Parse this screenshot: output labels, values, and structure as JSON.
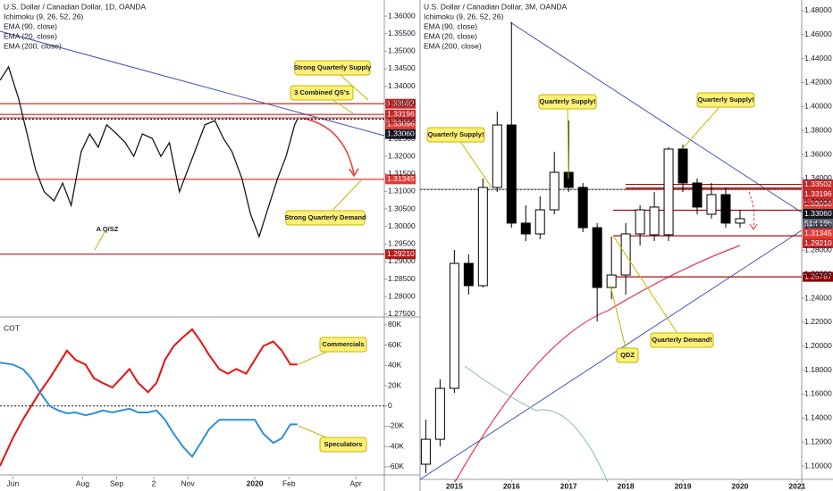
{
  "chart_data": [
    {
      "type": "line",
      "title": "U.S. Dollar / Canadian Dollar, 1D, OANDA",
      "indicators": [
        "Ichimoku (9, 26, 52, 26)",
        "EMA (90, close)",
        "EMA (20, close)",
        "EMA (200, close)"
      ],
      "x": [
        0,
        6,
        13,
        19,
        25,
        31,
        38,
        44,
        50,
        57,
        63,
        69,
        75,
        82,
        88,
        94,
        100,
        107,
        113,
        119,
        126,
        132,
        138,
        144,
        151,
        157,
        163,
        170,
        176,
        182,
        188,
        195,
        201,
        207,
        209
      ],
      "values": [
        1.3417,
        1.3455,
        1.3366,
        1.3264,
        1.3162,
        1.3099,
        1.3073,
        1.3124,
        1.306,
        1.3213,
        1.3264,
        1.3226,
        1.329,
        1.3264,
        1.3239,
        1.32,
        1.3264,
        1.3251,
        1.32,
        1.3239,
        1.3099,
        1.3162,
        1.3226,
        1.329,
        1.3302,
        1.3251,
        1.3213,
        1.3137,
        1.3035,
        1.2971,
        1.3048,
        1.3137,
        1.32,
        1.329,
        1.3307
      ],
      "color": "#131722",
      "xlim": [
        0,
        270
      ],
      "xticks": [
        {
          "value": 9,
          "label": "Jun"
        },
        {
          "value": 58,
          "label": "Aug"
        },
        {
          "value": 82,
          "label": "Sep"
        },
        {
          "value": 108,
          "label": "2"
        },
        {
          "value": 132,
          "label": "Nov"
        },
        {
          "value": 179,
          "label": "2020"
        },
        {
          "value": 203,
          "label": "Feb"
        },
        {
          "value": 250,
          "label": "Apr"
        }
      ],
      "ylim": [
        1.2742,
        1.3646
      ],
      "yticks": [
        {
          "value": 1.36,
          "label": "1.36000"
        },
        {
          "value": 1.355,
          "label": "1.35500"
        },
        {
          "value": 1.35,
          "label": "1.35000"
        },
        {
          "value": 1.345,
          "label": "1.34500"
        },
        {
          "value": 1.34,
          "label": "1.34000"
        },
        {
          "value": 1.335,
          "label": "1.33500"
        },
        {
          "value": 1.33,
          "label": "1.33000"
        },
        {
          "value": 1.325,
          "label": "1.32500"
        },
        {
          "value": 1.32,
          "label": "1.32000"
        },
        {
          "value": 1.315,
          "label": "1.31500"
        },
        {
          "value": 1.31,
          "label": "1.31000"
        },
        {
          "value": 1.305,
          "label": "1.30500"
        },
        {
          "value": 1.3,
          "label": "1.30000"
        },
        {
          "value": 1.295,
          "label": "1.29500"
        },
        {
          "value": 1.29,
          "label": "1.29000"
        },
        {
          "value": 1.285,
          "label": "1.28500"
        },
        {
          "value": 1.28,
          "label": "1.28000"
        },
        {
          "value": 1.275,
          "label": "1.27500"
        }
      ],
      "levels": [
        {
          "value": 1.33502,
          "label": "1.33502",
          "color": "#c62828"
        },
        {
          "value": 1.33196,
          "label": "1.33196",
          "color": "#c62828"
        },
        {
          "value": 1.33096,
          "label": "1.33096",
          "color": "#e53935"
        },
        {
          "value": 1.3306,
          "label": "1.33060",
          "color": "#131722"
        },
        {
          "value": 1.31345,
          "label": "1.31345",
          "color": "#e53935"
        },
        {
          "value": 1.2921,
          "label": "1.29210",
          "color": "#b71c1c"
        }
      ],
      "annotations": [
        "Strong Quarterly Supply",
        "3 Combined QS's",
        "Strong Quarterly Demand",
        "A Q/SZ"
      ]
    },
    {
      "type": "line",
      "title": "COT",
      "x": [
        0,
        9,
        16,
        22,
        28,
        35,
        41,
        47,
        53,
        60,
        66,
        72,
        79,
        85,
        91,
        97,
        104,
        110,
        116,
        122,
        129,
        135,
        141,
        147,
        154,
        160,
        166,
        173,
        179,
        185,
        192,
        198,
        204,
        209
      ],
      "series": [
        {
          "name": "Commercials",
          "color": "#e81010",
          "values": [
            -59100,
            -31800,
            -13600,
            0,
            13600,
            27300,
            40900,
            54500,
            45500,
            40900,
            27300,
            22700,
            18200,
            27300,
            36400,
            22700,
            13600,
            22700,
            45500,
            59100,
            68200,
            75500,
            63600,
            50000,
            36400,
            31800,
            36400,
            31800,
            45500,
            59100,
            63600,
            54500,
            40900,
            40900
          ]
        },
        {
          "name": "Speculators",
          "color": "#2f8fd8",
          "values": [
            42700,
            40900,
            36400,
            27300,
            13600,
            0,
            -4500,
            -7300,
            -6400,
            -9100,
            -7300,
            -4500,
            -6400,
            -4500,
            -2700,
            -6400,
            -6400,
            -4500,
            -13600,
            -27300,
            -40900,
            -50000,
            -36400,
            -22700,
            -13600,
            -13600,
            -13600,
            -13600,
            -13600,
            -27300,
            -36400,
            -31800,
            -18200,
            -18200
          ]
        }
      ],
      "xlim": [
        0,
        270
      ],
      "ylim": [
        -68000,
        86000
      ],
      "yticks": [
        {
          "value": 80000,
          "label": "80K"
        },
        {
          "value": 60000,
          "label": "60K"
        },
        {
          "value": 40000,
          "label": "40K"
        },
        {
          "value": 20000,
          "label": "20K"
        },
        0,
        {
          "value": -20000,
          "label": "-20K"
        },
        {
          "value": -40000,
          "label": "-40K"
        },
        {
          "value": -60000,
          "label": "-60K"
        }
      ],
      "zero_line": true
    },
    {
      "type": "candlestick",
      "title": "U.S. Dollar / Canadian Dollar, 3M, OANDA",
      "indicators": [
        "Ichimoku (9, 26, 52, 26)",
        "EMA (90, close)",
        "EMA (20, close)",
        "EMA (200, close)"
      ],
      "x": [
        2014.5,
        2014.75,
        2015,
        2015.25,
        2015.5,
        2015.75,
        2016,
        2016.25,
        2016.5,
        2016.75,
        2017,
        2017.25,
        2017.5,
        2017.75,
        2018,
        2018.25,
        2018.5,
        2018.75,
        2019,
        2019.25,
        2019.5,
        2019.75,
        2020
      ],
      "open": [
        1.1015,
        1.1223,
        1.1648,
        1.2691,
        1.2505,
        1.3325,
        1.3846,
        1.3027,
        1.2937,
        1.3138,
        1.3451,
        1.3325,
        1.2989,
        1.249,
        1.2594,
        1.2937,
        1.293,
        1.293,
        1.3645,
        1.3362,
        1.3101,
        1.3265,
        1.3027
      ],
      "high": [
        1.1387,
        1.1723,
        1.2803,
        1.2766,
        1.3399,
        1.3958,
        1.4703,
        1.3176,
        1.325,
        1.3623,
        1.3883,
        1.3362,
        1.3027,
        1.2915,
        1.3027,
        1.3176,
        1.3287,
        1.366,
        1.3682,
        1.3399,
        1.3362,
        1.3325,
        1.3138
      ],
      "low": [
        1.094,
        1.1164,
        1.1611,
        1.243,
        1.249,
        1.3287,
        1.2989,
        1.2877,
        1.2892,
        1.3101,
        1.3287,
        1.2952,
        1.2207,
        1.2393,
        1.243,
        1.284,
        1.2877,
        1.2877,
        1.3287,
        1.3101,
        1.3064,
        1.2989,
        1.2989
      ],
      "close": [
        1.1223,
        1.1648,
        1.2691,
        1.2505,
        1.3325,
        1.3846,
        1.3027,
        1.2937,
        1.3138,
        1.3451,
        1.3325,
        1.2989,
        1.249,
        1.2594,
        1.2937,
        1.3138,
        1.3161,
        1.3645,
        1.3362,
        1.3161,
        1.3265,
        1.3027,
        1.3064
      ],
      "up_color": "#ffffff",
      "down_color": "#000000",
      "xlim": [
        2014.4,
        2021.08
      ],
      "xticks": [
        2015,
        2016,
        2017,
        2018,
        2019,
        2020,
        2021
      ],
      "ylim": [
        1.0866,
        1.4889
      ],
      "yticks": [
        {
          "value": 1.48,
          "label": "1.48000"
        },
        {
          "value": 1.46,
          "label": "1.46000"
        },
        {
          "value": 1.44,
          "label": "1.44000"
        },
        {
          "value": 1.42,
          "label": "1.42000"
        },
        {
          "value": 1.4,
          "label": "1.40000"
        },
        {
          "value": 1.38,
          "label": "1.38000"
        },
        {
          "value": 1.36,
          "label": "1.36000"
        },
        {
          "value": 1.34,
          "label": "1.34000"
        },
        {
          "value": 1.32,
          "label": "1.32000"
        },
        {
          "value": 1.3,
          "label": "1.30000"
        },
        {
          "value": 1.28,
          "label": "1.28000"
        },
        {
          "value": 1.26,
          "label": "1.26000"
        },
        {
          "value": 1.24,
          "label": "1.24000"
        },
        {
          "value": 1.22,
          "label": "1.22000"
        },
        {
          "value": 1.2,
          "label": "1.20000"
        },
        {
          "value": 1.18,
          "label": "1.18000"
        },
        {
          "value": 1.16,
          "label": "1.16000"
        },
        {
          "value": 1.14,
          "label": "1.14000"
        },
        {
          "value": 1.12,
          "label": "1.12000"
        },
        {
          "value": 1.1,
          "label": "1.10000"
        }
      ],
      "levels": [
        {
          "value": 1.33502,
          "label": "1.33502",
          "color": "#c62828"
        },
        {
          "value": 1.33196,
          "label": "1.33196",
          "color": "#c62828"
        },
        {
          "value": 1.33096,
          "label": "1.33096",
          "color": "#e53935"
        },
        {
          "value": 1.3306,
          "label": "1.33060",
          "color": "#131722"
        },
        {
          "value": 1.31345,
          "label": "1.31345",
          "color": "#e53935"
        },
        {
          "value": 1.2921,
          "label": "1.29210",
          "color": "#c62828"
        },
        {
          "value": 1.25787,
          "label": "1.25787",
          "color": "#8b0000"
        }
      ],
      "countdown": "51d 19h",
      "annotations": [
        "Quarterly Supply!",
        "Quarterly Supply!",
        "Quarterly Supply!",
        "Quarterly Demand!",
        "QDZ"
      ]
    }
  ]
}
